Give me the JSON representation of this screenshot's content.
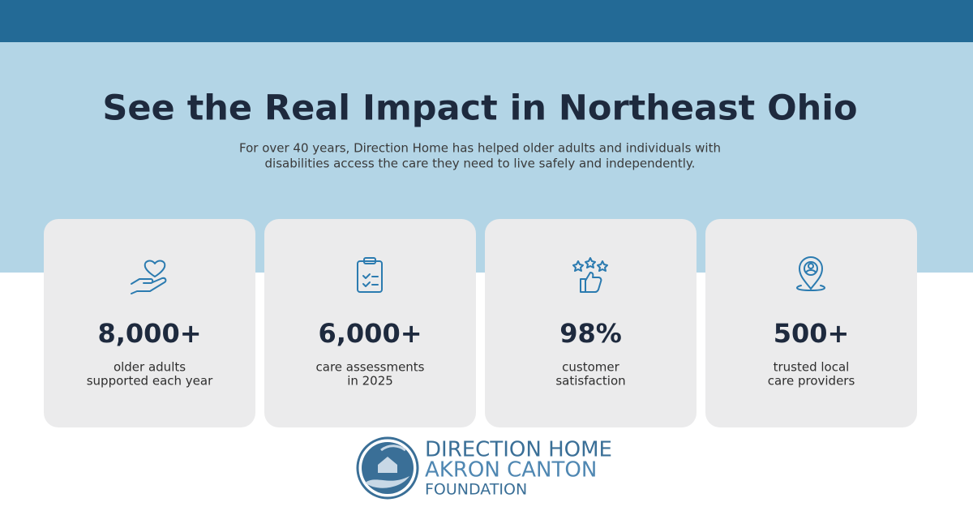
{
  "header": {
    "title": "See the Real Impact in Northeast Ohio",
    "subtitle": [
      "For over 40 years, Direction Home has helped older adults and individuals with",
      "disabilities access the care they need to live safely and independently."
    ]
  },
  "stats": [
    {
      "value": "8,000+",
      "label": [
        "older adults",
        "supported each year"
      ]
    },
    {
      "value": "6,000+",
      "label": [
        "care assessments",
        "in 2025"
      ]
    },
    {
      "value": "98%",
      "label": [
        "customer",
        "satisfaction"
      ]
    },
    {
      "value": "500+",
      "label": [
        "trusted local",
        "care providers"
      ]
    }
  ],
  "logo": [
    "DIRECTION HOME",
    "AKRON CANTON",
    "FOUNDATION"
  ]
}
